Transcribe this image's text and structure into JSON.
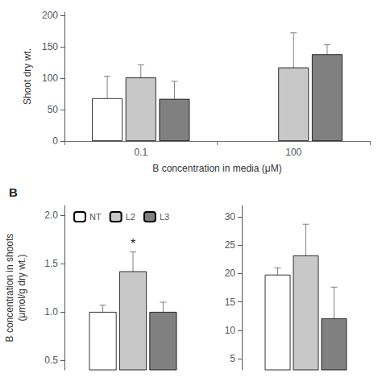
{
  "chart_data": [
    {
      "type": "bar",
      "xlabel": "B concentration in media (μM)",
      "ylabel": "Shoot dry wt.",
      "categories": [
        "0.1",
        "100"
      ],
      "series": [
        {
          "color": "white",
          "values": [
            68,
            null
          ],
          "errors": [
            35,
            null
          ]
        },
        {
          "color": "#c8c8c8",
          "values": [
            101,
            117
          ],
          "errors": [
            20,
            55
          ]
        },
        {
          "color": "#808080",
          "values": [
            67,
            138
          ],
          "errors": [
            28,
            15
          ]
        }
      ],
      "ylim": [
        0,
        205
      ],
      "yticks": [
        0,
        50,
        100,
        150,
        200
      ],
      "grid": false
    },
    {
      "type": "bar",
      "title": "B",
      "ylabel": "B concentration in shoots\n(μmol/g dry wt.)",
      "categories": [
        null
      ],
      "series": [
        {
          "name": "NT",
          "color": "white",
          "values": [
            1.0
          ],
          "errors": [
            0.07
          ]
        },
        {
          "name": "L2",
          "color": "#c8c8c8",
          "values": [
            1.42
          ],
          "errors": [
            0.2
          ]
        },
        {
          "name": "L3",
          "color": "#808080",
          "values": [
            1.0
          ],
          "errors": [
            0.1
          ]
        }
      ],
      "annotations": [
        {
          "text": "*",
          "series": "L2"
        }
      ],
      "ylim": [
        0.4,
        2.1
      ],
      "yticks": [
        0.5,
        {
          "value": 1.0,
          "label": "1.0"
        },
        1.5,
        {
          "value": 2.0,
          "label": "2.0"
        }
      ],
      "legend": "upper left",
      "tick_labels": "y",
      "grid": false
    },
    {
      "type": "bar",
      "categories": [
        null
      ],
      "series": [
        {
          "color": "white",
          "values": [
            19.8
          ],
          "errors": [
            1.2
          ]
        },
        {
          "color": "#c8c8c8",
          "values": [
            23.2
          ],
          "errors": [
            5.5
          ]
        },
        {
          "color": "#808080",
          "values": [
            12.1
          ],
          "errors": [
            5.5
          ]
        }
      ],
      "ylim": [
        3,
        32
      ],
      "yticks": [
        5,
        10,
        15,
        20,
        25,
        30
      ],
      "tick_labels": "y",
      "grid": false
    }
  ]
}
